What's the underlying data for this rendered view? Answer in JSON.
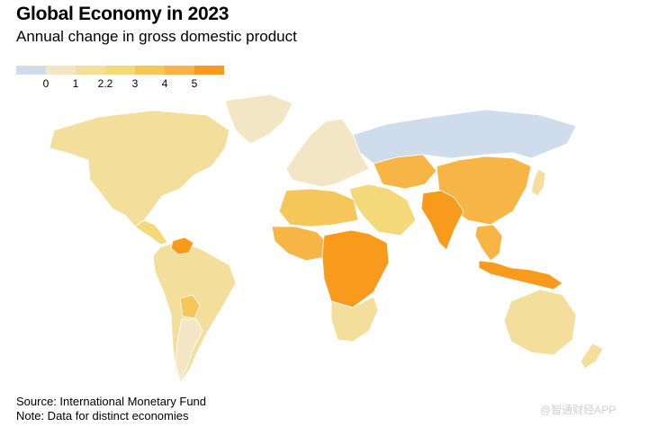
{
  "title": "Global Economy in 2023",
  "subtitle": "Annual change in gross domestic product",
  "legend": {
    "colors": [
      "#cfdcec",
      "#f3e6c4",
      "#f3de9c",
      "#f3d979",
      "#f5c75b",
      "#f7b545",
      "#f89b1c"
    ],
    "labels": [
      "0",
      "1",
      "2.2",
      "3",
      "4",
      "5"
    ]
  },
  "source": "Source: International Monetary Fund",
  "note": "Note: Data for distinct economies",
  "watermark": "@智通财经APP",
  "map_data": {
    "type": "choropleth",
    "regions": [
      {
        "name": "north-america",
        "bin": 2
      },
      {
        "name": "greenland",
        "bin": 1
      },
      {
        "name": "central-america",
        "bin": 3
      },
      {
        "name": "south-america",
        "bin": 2
      },
      {
        "name": "venezuela",
        "bin": 6
      },
      {
        "name": "bolivia",
        "bin": 4
      },
      {
        "name": "argentina",
        "bin": 1
      },
      {
        "name": "europe",
        "bin": 1
      },
      {
        "name": "russia",
        "bin": 0
      },
      {
        "name": "middle-east",
        "bin": 3
      },
      {
        "name": "north-africa",
        "bin": 4
      },
      {
        "name": "west-africa",
        "bin": 5
      },
      {
        "name": "central-east-africa",
        "bin": 6
      },
      {
        "name": "southern-africa",
        "bin": 2
      },
      {
        "name": "central-asia",
        "bin": 5
      },
      {
        "name": "china",
        "bin": 5
      },
      {
        "name": "india",
        "bin": 6
      },
      {
        "name": "southeast-asia",
        "bin": 5
      },
      {
        "name": "indonesia",
        "bin": 6
      },
      {
        "name": "japan",
        "bin": 2
      },
      {
        "name": "australia",
        "bin": 2
      },
      {
        "name": "new-zealand",
        "bin": 2
      }
    ]
  }
}
